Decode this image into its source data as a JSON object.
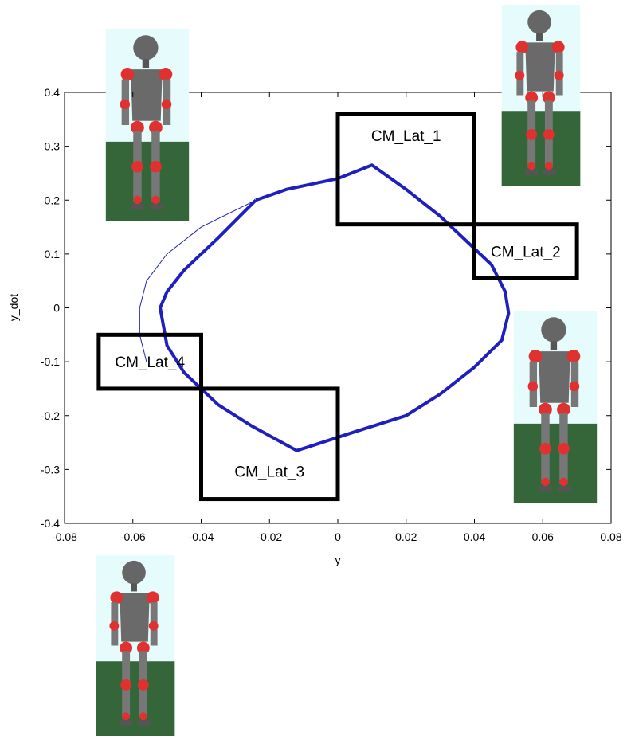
{
  "chart_data": {
    "type": "line",
    "xlabel": "y",
    "ylabel": "y_dot",
    "xlim": [
      -0.08,
      0.08
    ],
    "xticks": [
      -0.08,
      -0.06,
      -0.04,
      -0.02,
      0,
      0.02,
      0.04,
      0.06,
      0.08
    ],
    "ylim": [
      -0.4,
      0.4
    ],
    "yticks": [
      -0.4,
      -0.3,
      -0.2,
      -0.1,
      0,
      0.1,
      0.2,
      0.3,
      0.4
    ],
    "series": [
      {
        "color": "#1f1fbf",
        "width": 1,
        "x": [
          -0.056,
          -0.058,
          -0.058,
          -0.056,
          -0.05,
          -0.04,
          -0.024
        ],
        "values": [
          -0.1,
          -0.05,
          0.0,
          0.05,
          0.1,
          0.15,
          0.2
        ]
      },
      {
        "color": "#1f1fbf",
        "width": 4,
        "x": [
          -0.024,
          -0.015,
          0,
          0.01,
          0.02,
          0.03,
          0.04,
          0.045,
          0.049,
          0.05,
          0.048,
          0.04,
          0.03,
          0.02,
          0.005,
          -0.012,
          -0.025,
          -0.035,
          -0.045,
          -0.05,
          -0.052,
          -0.05,
          -0.045,
          -0.035,
          -0.024
        ],
        "values": [
          0.2,
          0.22,
          0.24,
          0.265,
          0.22,
          0.17,
          0.11,
          0.08,
          0.03,
          -0.01,
          -0.06,
          -0.11,
          -0.16,
          -0.2,
          -0.23,
          -0.265,
          -0.22,
          -0.18,
          -0.12,
          -0.07,
          0.0,
          0.03,
          0.07,
          0.13,
          0.2
        ]
      }
    ],
    "annotations": [
      {
        "text": "CM_Lat_1",
        "box": [
          0,
          0.04,
          0.155,
          0.36
        ]
      },
      {
        "text": "CM_Lat_2",
        "box": [
          0.04,
          0.07,
          0.055,
          0.155
        ]
      },
      {
        "text": "CM_Lat_3",
        "box": [
          -0.04,
          0,
          -0.355,
          -0.15
        ]
      },
      {
        "text": "CM_Lat_4",
        "box": [
          -0.07,
          -0.04,
          -0.15,
          -0.05
        ]
      }
    ]
  }
}
